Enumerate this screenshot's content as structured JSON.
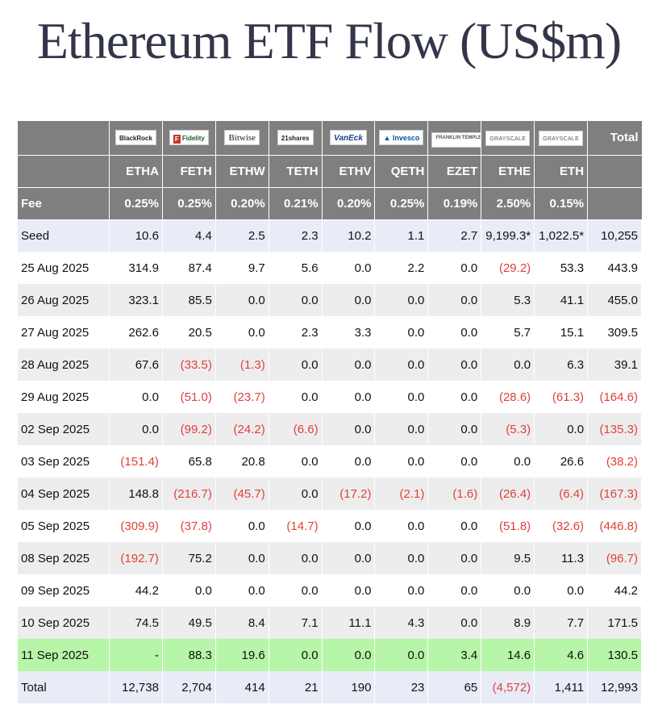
{
  "title": "Ethereum ETF Flow (US$m)",
  "colors": {
    "header_bg": "#7f7f7f",
    "negative": "#e0413a",
    "seed_bg": "#e8ecf7",
    "latest_bg": "#b7f5a8",
    "stripe_bg": "#ededed"
  },
  "header": {
    "issuers": [
      "BlackRock",
      "Fidelity",
      "Bitwise",
      "21shares",
      "VanEck",
      "Invesco",
      "FRANKLIN TEMPLETON",
      "GRAYSCALE",
      "GRAYSCALE"
    ],
    "total_label": "Total",
    "tickers": [
      "ETHA",
      "FETH",
      "ETHW",
      "TETH",
      "ETHV",
      "QETH",
      "EZET",
      "ETHE",
      "ETH"
    ],
    "fee_label": "Fee",
    "fees": [
      "0.25%",
      "0.25%",
      "0.20%",
      "0.21%",
      "0.20%",
      "0.25%",
      "0.19%",
      "2.50%",
      "0.15%"
    ]
  },
  "rows": [
    {
      "label": "Seed",
      "values": [
        "10.6",
        "4.4",
        "2.5",
        "2.3",
        "10.2",
        "1.1",
        "2.7",
        "9,199.3*",
        "1,022.5*",
        "10,255"
      ]
    },
    {
      "label": "25 Aug 2025",
      "values": [
        "314.9",
        "87.4",
        "9.7",
        "5.6",
        "0.0",
        "2.2",
        "0.0",
        "(29.2)",
        "53.3",
        "443.9"
      ]
    },
    {
      "label": "26 Aug 2025",
      "values": [
        "323.1",
        "85.5",
        "0.0",
        "0.0",
        "0.0",
        "0.0",
        "0.0",
        "5.3",
        "41.1",
        "455.0"
      ]
    },
    {
      "label": "27 Aug 2025",
      "values": [
        "262.6",
        "20.5",
        "0.0",
        "2.3",
        "3.3",
        "0.0",
        "0.0",
        "5.7",
        "15.1",
        "309.5"
      ]
    },
    {
      "label": "28 Aug 2025",
      "values": [
        "67.6",
        "(33.5)",
        "(1.3)",
        "0.0",
        "0.0",
        "0.0",
        "0.0",
        "0.0",
        "6.3",
        "39.1"
      ]
    },
    {
      "label": "29 Aug 2025",
      "values": [
        "0.0",
        "(51.0)",
        "(23.7)",
        "0.0",
        "0.0",
        "0.0",
        "0.0",
        "(28.6)",
        "(61.3)",
        "(164.6)"
      ]
    },
    {
      "label": "02 Sep 2025",
      "values": [
        "0.0",
        "(99.2)",
        "(24.2)",
        "(6.6)",
        "0.0",
        "0.0",
        "0.0",
        "(5.3)",
        "0.0",
        "(135.3)"
      ]
    },
    {
      "label": "03 Sep 2025",
      "values": [
        "(151.4)",
        "65.8",
        "20.8",
        "0.0",
        "0.0",
        "0.0",
        "0.0",
        "0.0",
        "26.6",
        "(38.2)"
      ]
    },
    {
      "label": "04 Sep 2025",
      "values": [
        "148.8",
        "(216.7)",
        "(45.7)",
        "0.0",
        "(17.2)",
        "(2.1)",
        "(1.6)",
        "(26.4)",
        "(6.4)",
        "(167.3)"
      ]
    },
    {
      "label": "05 Sep 2025",
      "values": [
        "(309.9)",
        "(37.8)",
        "0.0",
        "(14.7)",
        "0.0",
        "0.0",
        "0.0",
        "(51.8)",
        "(32.6)",
        "(446.8)"
      ]
    },
    {
      "label": "08 Sep 2025",
      "values": [
        "(192.7)",
        "75.2",
        "0.0",
        "0.0",
        "0.0",
        "0.0",
        "0.0",
        "9.5",
        "11.3",
        "(96.7)"
      ]
    },
    {
      "label": "09 Sep 2025",
      "values": [
        "44.2",
        "0.0",
        "0.0",
        "0.0",
        "0.0",
        "0.0",
        "0.0",
        "0.0",
        "0.0",
        "44.2"
      ]
    },
    {
      "label": "10 Sep 2025",
      "values": [
        "74.5",
        "49.5",
        "8.4",
        "7.1",
        "11.1",
        "4.3",
        "0.0",
        "8.9",
        "7.7",
        "171.5"
      ]
    },
    {
      "label": "11 Sep 2025",
      "values": [
        "-",
        "88.3",
        "19.6",
        "0.0",
        "0.0",
        "0.0",
        "3.4",
        "14.6",
        "4.6",
        "130.5"
      ]
    },
    {
      "label": "Total",
      "values": [
        "12,738",
        "2,704",
        "414",
        "21",
        "190",
        "23",
        "65",
        "(4,572)",
        "1,411",
        "12,993"
      ]
    }
  ]
}
